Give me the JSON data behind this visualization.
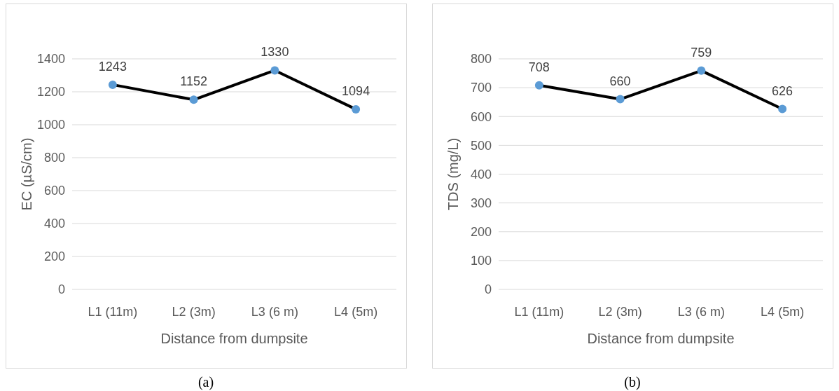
{
  "chart_data": [
    {
      "type": "line",
      "xlabel": "Distance from dumpsite",
      "ylabel": "EC (µS/cm)",
      "categories": [
        "L1 (11m)",
        "L2 (3m)",
        "L3 (6 m)",
        "L4 (5m)"
      ],
      "series": [
        {
          "color": "#000000",
          "colors": [
            "#5b9bd5",
            "#5b9bd5",
            "#5b9bd5",
            "#5b9bd5"
          ],
          "values": [
            1243,
            1152,
            1330,
            1094
          ]
        }
      ],
      "ylim": [
        0,
        1400
      ],
      "yticks": [
        0,
        200,
        400,
        600,
        800,
        1000,
        1200,
        1400
      ],
      "grid": "y",
      "data_labels": true,
      "marker": "circle",
      "line_style": "solid",
      "annotations": [
        "(a)"
      ]
    },
    {
      "type": "line",
      "xlabel": "Distance from dumpsite",
      "ylabel": "TDS (mg/L)",
      "categories": [
        "L1 (11m)",
        "L2 (3m)",
        "L3 (6 m)",
        "L4 (5m)"
      ],
      "series": [
        {
          "color": "#000000",
          "colors": [
            "#5b9bd5",
            "#5b9bd5",
            "#5b9bd5",
            "#5b9bd5"
          ],
          "values": [
            708,
            660,
            759,
            626
          ]
        }
      ],
      "ylim": [
        0,
        800
      ],
      "yticks": [
        0,
        100,
        200,
        300,
        400,
        500,
        600,
        700,
        800
      ],
      "grid": "y",
      "data_labels": true,
      "marker": "circle",
      "line_style": "solid",
      "annotations": [
        "(b)"
      ]
    }
  ]
}
